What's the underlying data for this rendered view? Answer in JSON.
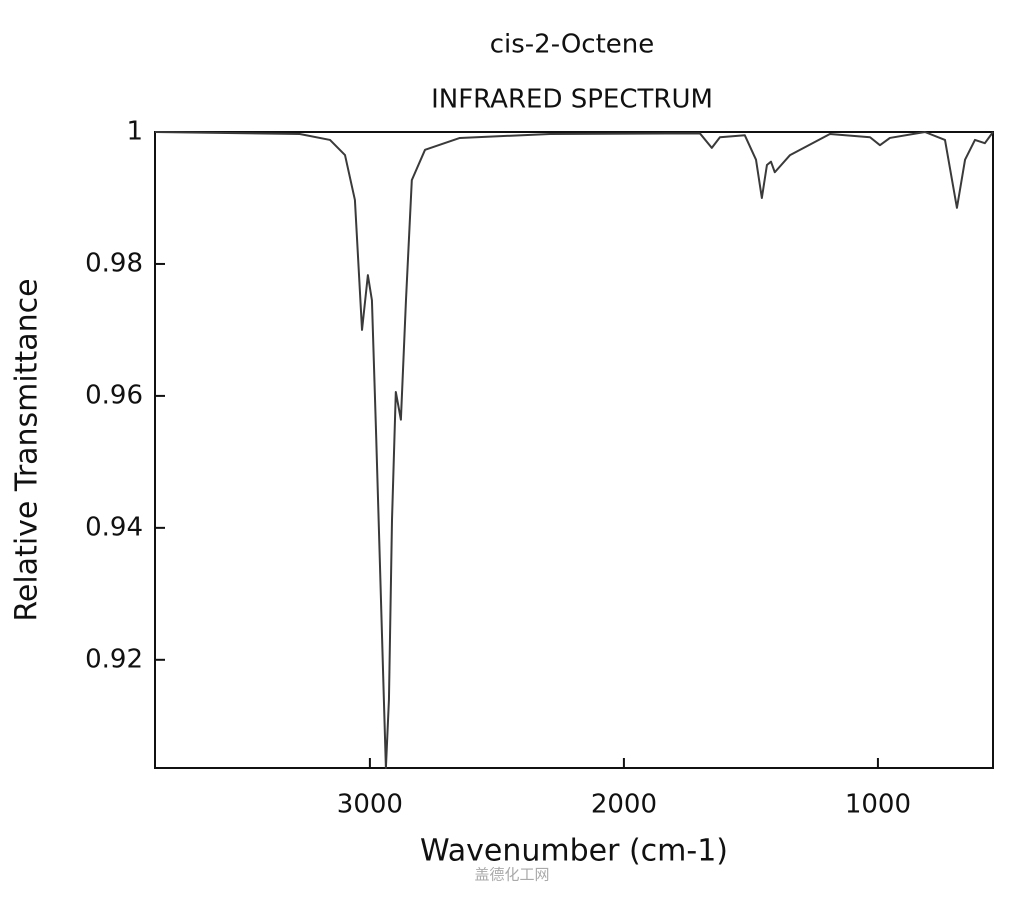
{
  "chart_data": {
    "type": "line",
    "title": "cis-2-Octene",
    "subtitle": "INFRARED SPECTRUM",
    "x_label": "Wavenumber (cm-1)",
    "y_label": "Relative Transmittance",
    "x": [
      3846,
      3276,
      3157,
      3098,
      3059,
      3031,
      3008,
      2992,
      2976,
      2961,
      2945,
      2937,
      2925,
      2913,
      2898,
      2878,
      2858,
      2835,
      2783,
      2646,
      2291,
      1701,
      1654,
      1622,
      1524,
      1480,
      1457,
      1437,
      1421,
      1406,
      1346,
      1189,
      1031,
      992,
      953,
      815,
      736,
      689,
      657,
      618,
      579,
      547
    ],
    "values": [
      1.0,
      0.9997,
      0.9988,
      0.9965,
      0.9897,
      0.97,
      0.9783,
      0.9745,
      0.9548,
      0.9352,
      0.914,
      0.9036,
      0.914,
      0.9412,
      0.9606,
      0.9564,
      0.9745,
      0.9927,
      0.9973,
      0.9991,
      0.9997,
      0.9998,
      0.9976,
      0.9992,
      0.9995,
      0.9958,
      0.99,
      0.995,
      0.9955,
      0.9939,
      0.9965,
      0.9997,
      0.9992,
      0.998,
      0.9991,
      1.0,
      0.9988,
      0.9885,
      0.9958,
      0.9988,
      0.9983,
      1.0
    ],
    "color": "#3a3a3a",
    "xlim": [
      3846,
      547
    ],
    "xticks": [
      3000,
      2000,
      1000
    ],
    "ylim": [
      0.9036,
      1
    ],
    "yticks": [
      0.92,
      0.94,
      0.96,
      0.98,
      1
    ],
    "watermark": "盖德化工网"
  }
}
